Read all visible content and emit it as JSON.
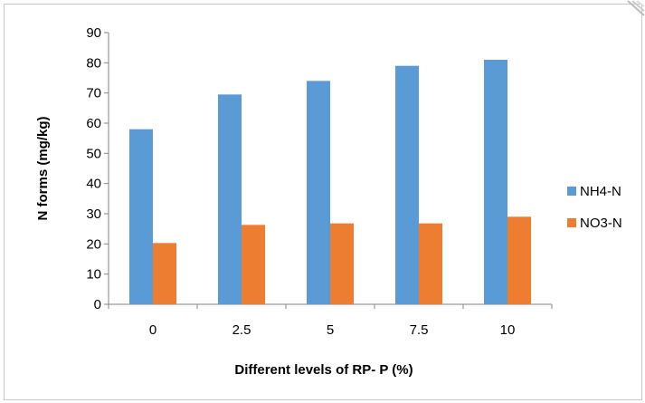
{
  "chart_data": {
    "type": "bar",
    "title": "",
    "xlabel": "Different levels of RP- P (%)",
    "ylabel": "N forms (mg/kg)",
    "categories": [
      "0",
      "2.5",
      "5",
      "7.5",
      "10"
    ],
    "ylim": [
      0,
      90
    ],
    "yticks": [
      "0",
      "10",
      "20",
      "30",
      "40",
      "50",
      "60",
      "70",
      "80",
      "90"
    ],
    "grid": false,
    "legend_position": "right",
    "series": [
      {
        "name": "NH4-N",
        "color": "#5b9bd5",
        "values": [
          58,
          69.5,
          74,
          79,
          81
        ]
      },
      {
        "name": "NO3-N",
        "color": "#ed7d31",
        "values": [
          20.3,
          26.3,
          26.8,
          26.8,
          29
        ]
      }
    ]
  }
}
